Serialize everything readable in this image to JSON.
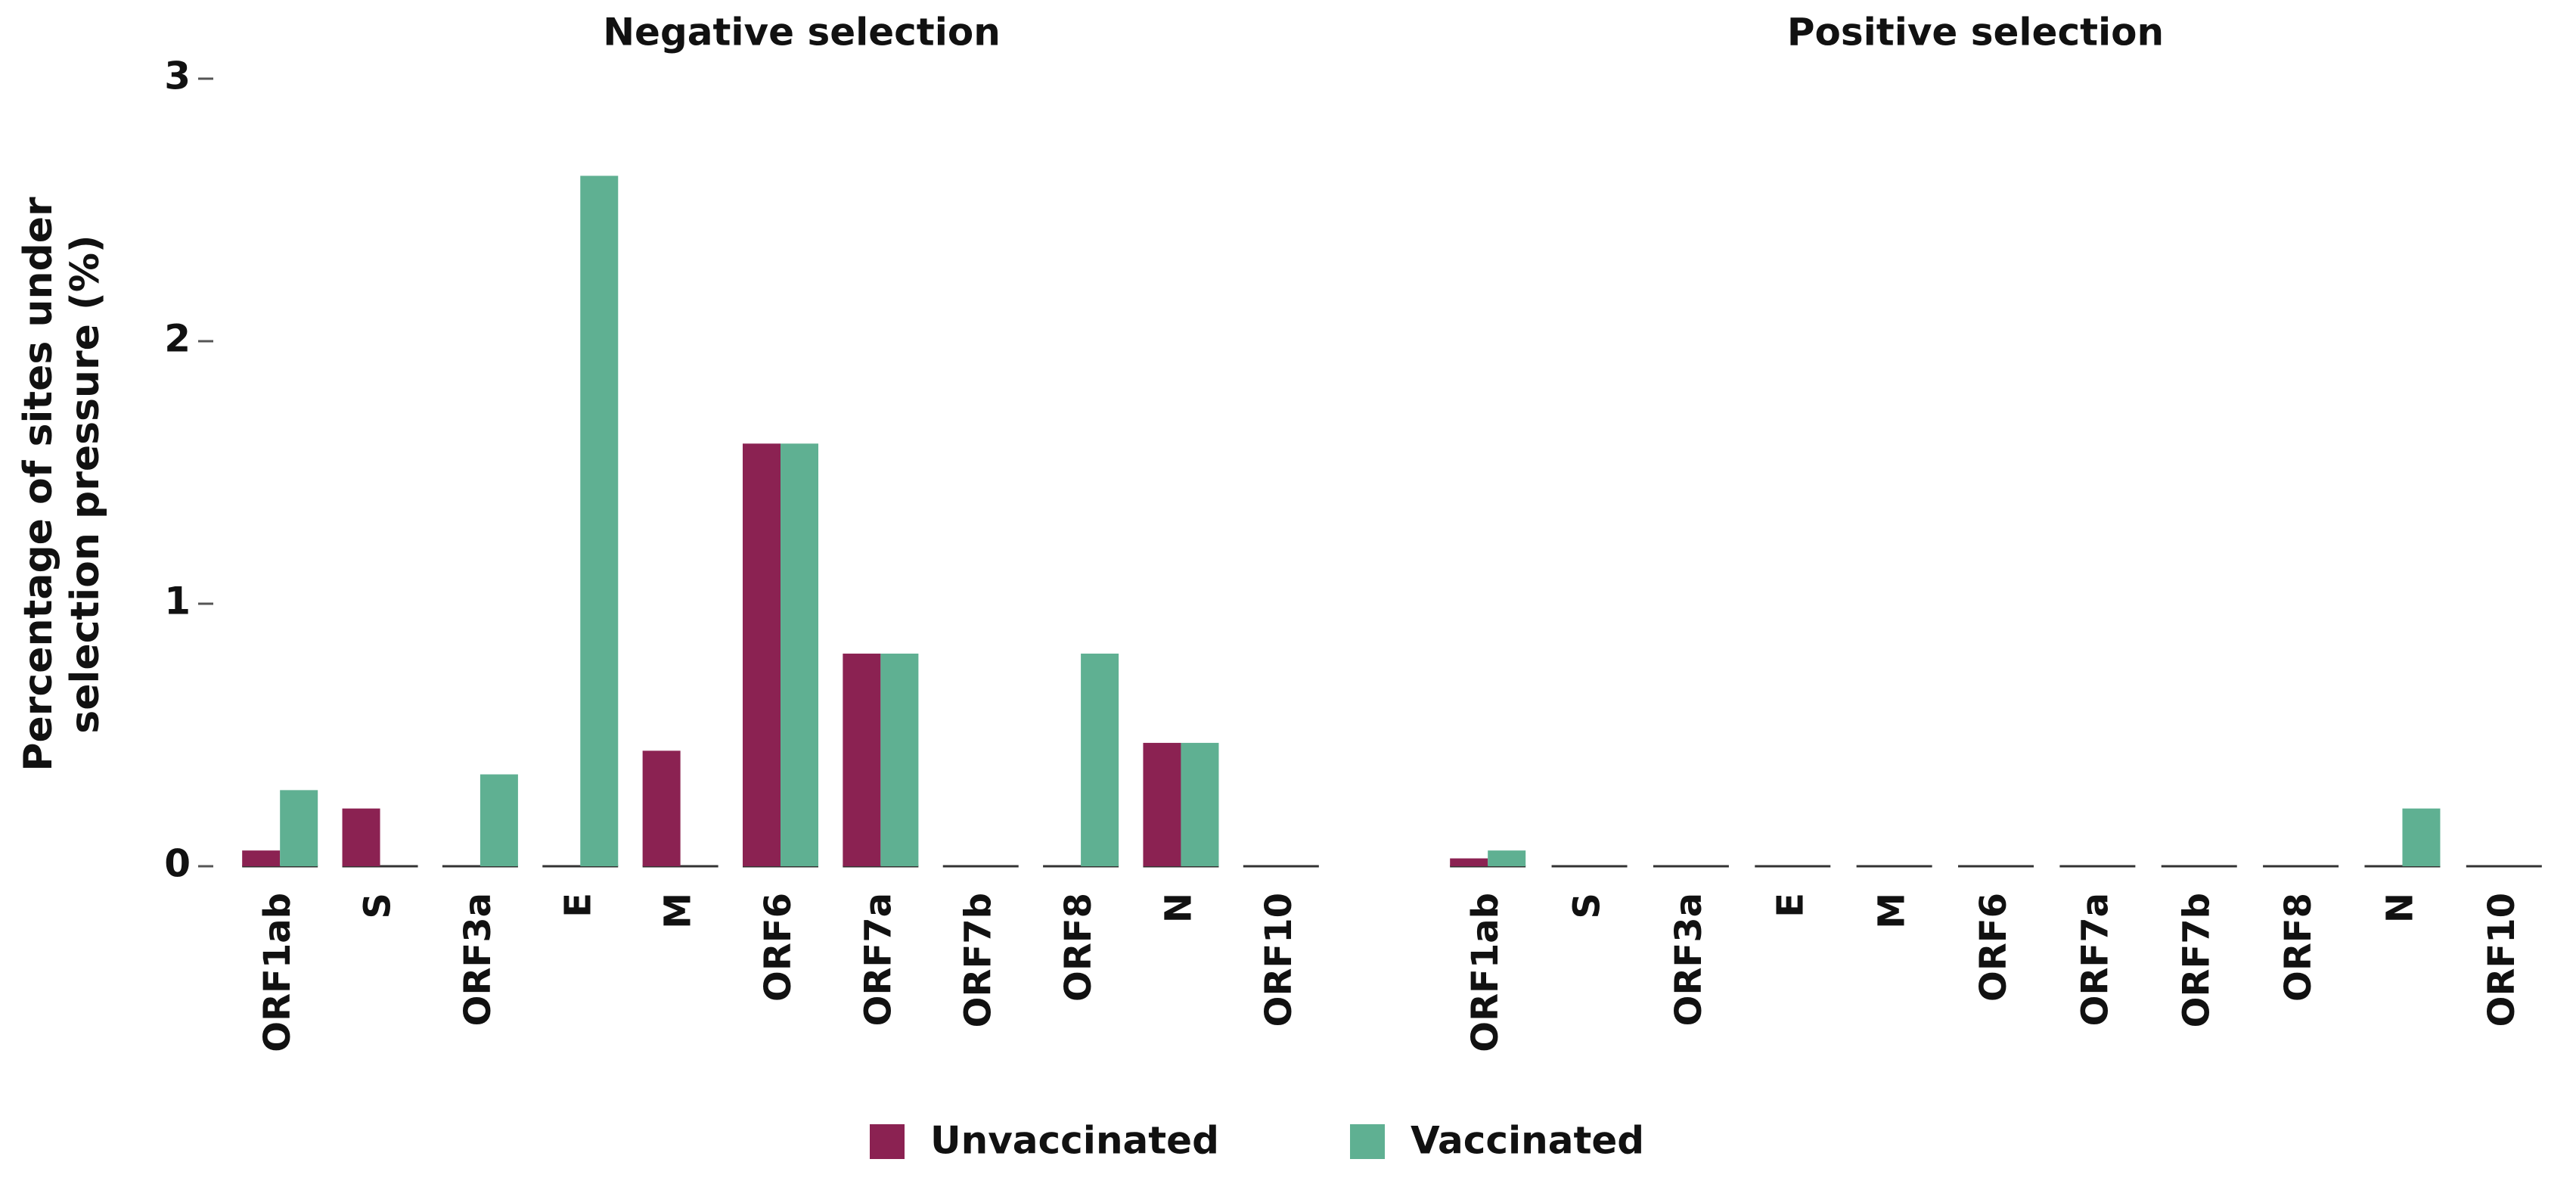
{
  "chart_data": [
    {
      "type": "bar",
      "title": "Negative selection",
      "ylabel": [
        "Percentage of sites under",
        "selection pressure (%)"
      ],
      "categories": [
        "ORF1ab",
        "S",
        "ORF3a",
        "E",
        "M",
        "ORF6",
        "ORF7a",
        "ORF7b",
        "ORF8",
        "N",
        "ORF10"
      ],
      "series": [
        {
          "name": "Unvaccinated",
          "color": "#8b2252",
          "values": [
            0.06,
            0.22,
            0,
            0,
            0.44,
            1.61,
            0.81,
            0,
            0,
            0.47,
            0
          ]
        },
        {
          "name": "Vaccinated",
          "color": "#5fb092",
          "values": [
            0.29,
            0,
            0.35,
            2.63,
            0,
            1.61,
            0.81,
            0,
            0.81,
            0.47,
            0
          ]
        }
      ],
      "ylim": [
        0,
        3
      ],
      "yticks": [
        0,
        1,
        2,
        3
      ]
    },
    {
      "type": "bar",
      "title": "Positive selection",
      "categories": [
        "ORF1ab",
        "S",
        "ORF3a",
        "E",
        "M",
        "ORF6",
        "ORF7a",
        "ORF7b",
        "ORF8",
        "N",
        "ORF10"
      ],
      "series": [
        {
          "values": [
            0.03,
            0,
            0,
            0,
            0,
            0,
            0,
            0,
            0,
            0,
            0
          ]
        },
        {
          "values": [
            0.06,
            0,
            0,
            0,
            0,
            0,
            0,
            0,
            0,
            0.22,
            0
          ]
        }
      ],
      "ylim": [
        0,
        3
      ]
    }
  ]
}
